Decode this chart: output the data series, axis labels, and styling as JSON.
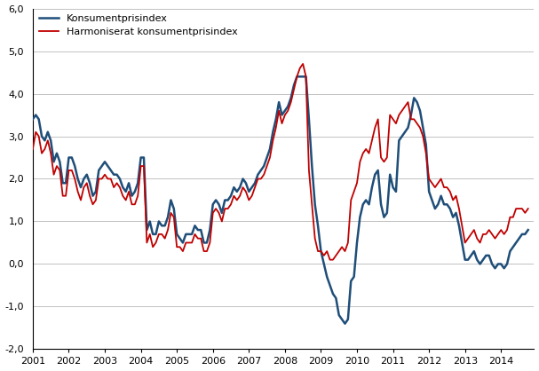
{
  "series": {
    "kpi": {
      "label": "Konsumentprisindex",
      "color": "#1F4E79",
      "linewidth": 1.8
    },
    "hikp": {
      "label": "Harmoniserat konsumentprisindex",
      "color": "#C00000",
      "linewidth": 1.3
    }
  },
  "ylim": [
    -2.0,
    6.0
  ],
  "yticks": [
    -2.0,
    -1.0,
    0.0,
    1.0,
    2.0,
    3.0,
    4.0,
    5.0,
    6.0
  ],
  "xtick_years": [
    2001,
    2002,
    2003,
    2004,
    2005,
    2006,
    2007,
    2008,
    2009,
    2010,
    2011,
    2012,
    2013,
    2014
  ],
  "background_color": "#FFFFFF",
  "grid_color": "#AAAAAA",
  "kpi_values": [
    3.4,
    3.5,
    3.4,
    3.0,
    2.9,
    3.1,
    2.9,
    2.4,
    2.6,
    2.4,
    1.9,
    1.9,
    2.5,
    2.5,
    2.3,
    2.0,
    1.8,
    2.0,
    2.1,
    1.9,
    1.6,
    1.7,
    2.2,
    2.3,
    2.4,
    2.3,
    2.2,
    2.1,
    2.1,
    2.0,
    1.8,
    1.7,
    1.9,
    1.6,
    1.7,
    1.9,
    2.5,
    2.5,
    0.8,
    1.0,
    0.7,
    0.7,
    1.0,
    0.9,
    0.9,
    1.1,
    1.5,
    1.3,
    0.7,
    0.6,
    0.5,
    0.7,
    0.7,
    0.7,
    0.9,
    0.8,
    0.8,
    0.5,
    0.5,
    0.8,
    1.4,
    1.5,
    1.4,
    1.2,
    1.5,
    1.5,
    1.6,
    1.8,
    1.7,
    1.8,
    2.0,
    1.9,
    1.7,
    1.8,
    1.9,
    2.1,
    2.2,
    2.3,
    2.5,
    2.7,
    3.1,
    3.4,
    3.8,
    3.5,
    3.6,
    3.7,
    3.9,
    4.2,
    4.4,
    4.4,
    4.4,
    4.4,
    3.4,
    2.3,
    1.4,
    0.9,
    0.3,
    0.0,
    -0.3,
    -0.5,
    -0.7,
    -0.8,
    -1.2,
    -1.3,
    -1.4,
    -1.3,
    -0.4,
    -0.3,
    0.5,
    1.1,
    1.4,
    1.5,
    1.4,
    1.8,
    2.1,
    2.2,
    1.4,
    1.1,
    1.2,
    2.1,
    1.8,
    1.7,
    2.9,
    3.0,
    3.1,
    3.2,
    3.5,
    3.9,
    3.8,
    3.6,
    3.2,
    2.8,
    1.7,
    1.5,
    1.3,
    1.4,
    1.6,
    1.4,
    1.4,
    1.3,
    1.1,
    1.2,
    0.9,
    0.5,
    0.1,
    0.1,
    0.2,
    0.3,
    0.1,
    0.0,
    0.1,
    0.2,
    0.2,
    0.0,
    -0.1,
    0.0,
    0.0,
    -0.1,
    0.0,
    0.3,
    0.4,
    0.5,
    0.6,
    0.7,
    0.7,
    0.8
  ],
  "hikp_values": [
    2.7,
    3.1,
    3.0,
    2.6,
    2.7,
    2.9,
    2.6,
    2.1,
    2.3,
    2.2,
    1.6,
    1.6,
    2.2,
    2.2,
    2.0,
    1.7,
    1.5,
    1.8,
    1.9,
    1.6,
    1.4,
    1.5,
    2.0,
    2.0,
    2.1,
    2.0,
    2.0,
    1.8,
    1.9,
    1.8,
    1.6,
    1.5,
    1.7,
    1.4,
    1.4,
    1.6,
    2.3,
    2.3,
    0.5,
    0.7,
    0.4,
    0.5,
    0.7,
    0.7,
    0.6,
    0.8,
    1.2,
    1.1,
    0.4,
    0.4,
    0.3,
    0.5,
    0.5,
    0.5,
    0.7,
    0.6,
    0.6,
    0.3,
    0.3,
    0.5,
    1.2,
    1.3,
    1.2,
    1.0,
    1.3,
    1.3,
    1.4,
    1.6,
    1.5,
    1.6,
    1.8,
    1.7,
    1.5,
    1.6,
    1.8,
    2.0,
    2.0,
    2.1,
    2.3,
    2.5,
    2.9,
    3.2,
    3.6,
    3.3,
    3.5,
    3.6,
    3.8,
    4.1,
    4.4,
    4.6,
    4.7,
    4.4,
    2.2,
    1.4,
    0.6,
    0.3,
    0.3,
    0.2,
    0.3,
    0.1,
    0.1,
    0.2,
    0.3,
    0.4,
    0.3,
    0.5,
    1.5,
    1.7,
    1.9,
    2.4,
    2.6,
    2.7,
    2.6,
    2.9,
    3.2,
    3.4,
    2.5,
    2.4,
    2.5,
    3.5,
    3.4,
    3.3,
    3.5,
    3.6,
    3.7,
    3.8,
    3.4,
    3.4,
    3.3,
    3.2,
    3.0,
    2.6,
    2.0,
    1.9,
    1.8,
    1.9,
    2.0,
    1.8,
    1.8,
    1.7,
    1.5,
    1.6,
    1.3,
    0.9,
    0.5,
    0.6,
    0.7,
    0.8,
    0.6,
    0.5,
    0.7,
    0.7,
    0.8,
    0.7,
    0.6,
    0.7,
    0.8,
    0.7,
    0.8,
    1.1,
    1.1,
    1.3,
    1.3,
    1.3,
    1.2,
    1.3
  ]
}
